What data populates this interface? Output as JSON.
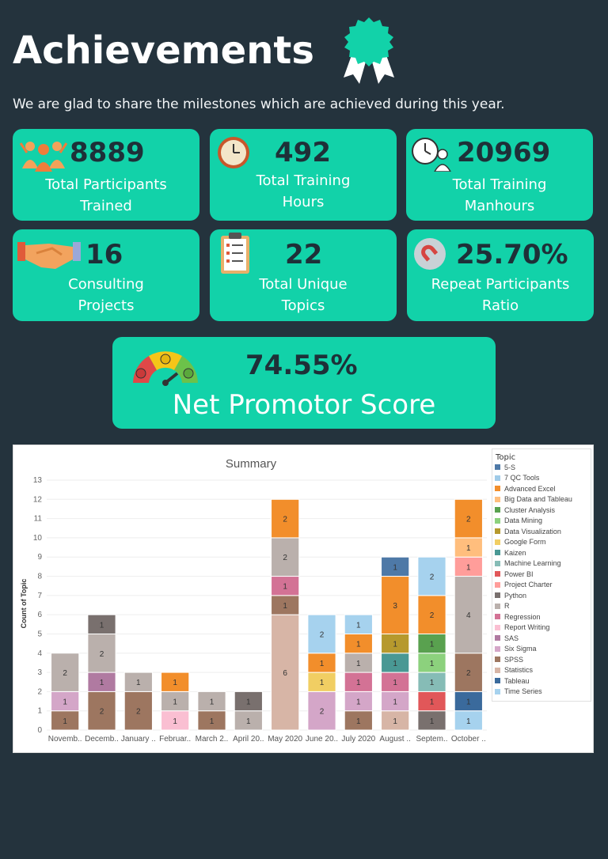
{
  "header": {
    "title": "Achievements",
    "subtitle": "We are glad to share the milestones which are achieved during this year."
  },
  "stats": [
    {
      "value": "8889",
      "label_line1": "Total Participants",
      "label_line2": "Trained",
      "icon": "people-icon"
    },
    {
      "value": "492",
      "label_line1": "Total Training",
      "label_line2": "Hours",
      "icon": "clock-icon"
    },
    {
      "value": "20969",
      "label_line1": "Total Training",
      "label_line2": "Manhours",
      "icon": "clock-person-icon"
    },
    {
      "value": "16",
      "label_line1": "Consulting",
      "label_line2": "Projects",
      "icon": "handshake-icon"
    },
    {
      "value": "22",
      "label_line1": "Total Unique",
      "label_line2": "Topics",
      "icon": "checklist-icon"
    },
    {
      "value": "25.70%",
      "label_line1": "Repeat Participants",
      "label_line2": "Ratio",
      "icon": "magnet-icon"
    }
  ],
  "nps": {
    "value": "74.55%",
    "label": "Net Promotor Score",
    "icon": "gauge-icon"
  },
  "colors": {
    "background": "#24333d",
    "card": "#12d2a9",
    "number": "#1e3038"
  },
  "chart_data": {
    "type": "bar",
    "stacked": true,
    "title": "Summary",
    "ylabel": "Count of Topic",
    "xlabel": "",
    "ylim": [
      0,
      13
    ],
    "yticks": [
      0,
      1,
      2,
      3,
      4,
      5,
      6,
      7,
      8,
      9,
      10,
      11,
      12,
      13
    ],
    "grid": true,
    "legend_title": "Topic",
    "legend_position": "right",
    "categories": [
      "Novemb..",
      "Decemb..",
      "January ..",
      "Februar..",
      "March 2..",
      "April 20..",
      "May 2020",
      "June 20..",
      "July 2020",
      "August ..",
      "Septem..",
      "October .."
    ],
    "topics": [
      {
        "name": "5-S",
        "color": "#4e79a7"
      },
      {
        "name": "7 QC Tools",
        "color": "#a0cbe8"
      },
      {
        "name": "Advanced Excel",
        "color": "#f28e2b"
      },
      {
        "name": "Big Data and Tableau",
        "color": "#ffbe7d"
      },
      {
        "name": "Cluster Analysis",
        "color": "#59a14f"
      },
      {
        "name": "Data Mining",
        "color": "#8cd17d"
      },
      {
        "name": "Data Visualization",
        "color": "#b6992d"
      },
      {
        "name": "Google Form",
        "color": "#f1ce63"
      },
      {
        "name": "Kaizen",
        "color": "#499894"
      },
      {
        "name": "Machine Learning",
        "color": "#86bcb6"
      },
      {
        "name": "Power BI",
        "color": "#e15759"
      },
      {
        "name": "Project Charter",
        "color": "#ff9d9a"
      },
      {
        "name": "Python",
        "color": "#79706e"
      },
      {
        "name": "R",
        "color": "#bab0ac"
      },
      {
        "name": "Regression",
        "color": "#d37295"
      },
      {
        "name": "Report Writing",
        "color": "#fabfd2"
      },
      {
        "name": "SAS",
        "color": "#b07aa1"
      },
      {
        "name": "Six Sigma",
        "color": "#d4a6c8"
      },
      {
        "name": "SPSS",
        "color": "#9d7660"
      },
      {
        "name": "Statistics",
        "color": "#d7b5a6"
      },
      {
        "name": "Tableau",
        "color": "#3a6a9c"
      },
      {
        "name": "Time Series",
        "color": "#a6d2ee"
      }
    ],
    "stacks": [
      [
        {
          "topic": "SPSS",
          "value": 1
        },
        {
          "topic": "Six Sigma",
          "value": 1
        },
        {
          "topic": "R",
          "value": 2
        }
      ],
      [
        {
          "topic": "SPSS",
          "value": 2
        },
        {
          "topic": "SAS",
          "value": 1
        },
        {
          "topic": "R",
          "value": 2
        },
        {
          "topic": "Python",
          "value": 1
        }
      ],
      [
        {
          "topic": "SPSS",
          "value": 2
        },
        {
          "topic": "R",
          "value": 1
        }
      ],
      [
        {
          "topic": "Report Writing",
          "value": 1
        },
        {
          "topic": "R",
          "value": 1
        },
        {
          "topic": "Advanced Excel",
          "value": 1
        }
      ],
      [
        {
          "topic": "SPSS",
          "value": 1
        },
        {
          "topic": "R",
          "value": 1
        }
      ],
      [
        {
          "topic": "R",
          "value": 1
        },
        {
          "topic": "Python",
          "value": 1
        }
      ],
      [
        {
          "topic": "Statistics",
          "value": 6
        },
        {
          "topic": "SPSS",
          "value": 1
        },
        {
          "topic": "Regression",
          "value": 1
        },
        {
          "topic": "R",
          "value": 2
        },
        {
          "topic": "Advanced Excel",
          "value": 2
        }
      ],
      [
        {
          "topic": "Six Sigma",
          "value": 2
        },
        {
          "topic": "Google Form",
          "value": 1
        },
        {
          "topic": "Advanced Excel",
          "value": 1
        },
        {
          "topic": "Time Series",
          "value": 2
        }
      ],
      [
        {
          "topic": "SPSS",
          "value": 1
        },
        {
          "topic": "Six Sigma",
          "value": 1
        },
        {
          "topic": "Regression",
          "value": 1
        },
        {
          "topic": "R",
          "value": 1
        },
        {
          "topic": "Advanced Excel",
          "value": 1
        },
        {
          "topic": "Time Series",
          "value": 1
        }
      ],
      [
        {
          "topic": "Statistics",
          "value": 1
        },
        {
          "topic": "Six Sigma",
          "value": 1
        },
        {
          "topic": "Regression",
          "value": 1
        },
        {
          "topic": "Kaizen",
          "value": 1
        },
        {
          "topic": "Data Visualization",
          "value": 1
        },
        {
          "topic": "Advanced Excel",
          "value": 3
        },
        {
          "topic": "5-S",
          "value": 1
        }
      ],
      [
        {
          "topic": "Python",
          "value": 1
        },
        {
          "topic": "Power BI",
          "value": 1
        },
        {
          "topic": "Machine Learning",
          "value": 1
        },
        {
          "topic": "Data Mining",
          "value": 1
        },
        {
          "topic": "Cluster Analysis",
          "value": 1
        },
        {
          "topic": "Advanced Excel",
          "value": 2
        },
        {
          "topic": "Time Series",
          "value": 2
        }
      ],
      [
        {
          "topic": "Time Series",
          "value": 1
        },
        {
          "topic": "Tableau",
          "value": 1
        },
        {
          "topic": "SPSS",
          "value": 2
        },
        {
          "topic": "R",
          "value": 4
        },
        {
          "topic": "Project Charter",
          "value": 1
        },
        {
          "topic": "Big Data and Tableau",
          "value": 1
        },
        {
          "topic": "Advanced Excel",
          "value": 2
        }
      ]
    ]
  }
}
